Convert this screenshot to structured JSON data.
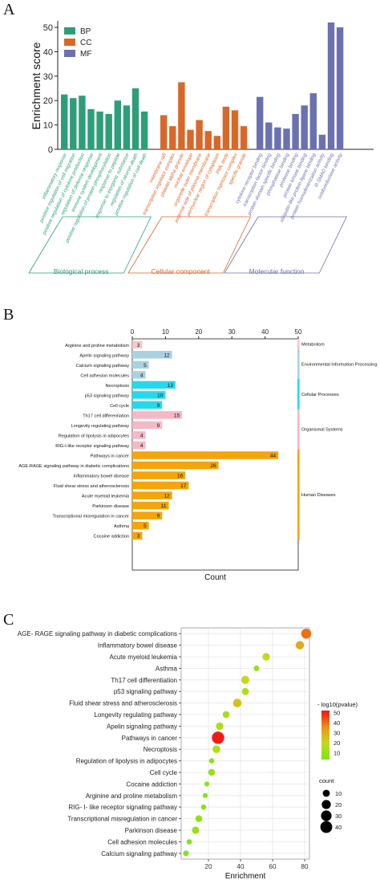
{
  "panels": {
    "A": {
      "letter": "A",
      "chart_data": {
        "type": "bar",
        "ylabel": "Enrichment score",
        "ylim": [
          0,
          52
        ],
        "yticks": [
          0,
          10,
          20,
          30,
          40,
          50
        ],
        "legend": [
          {
            "name": "BP",
            "color": "#2e9e78"
          },
          {
            "name": "CC",
            "color": "#d9672a"
          },
          {
            "name": "MF",
            "color": "#6b70b0"
          }
        ],
        "legend_position": "top-left",
        "groups": [
          {
            "name": "Biological process",
            "color": "#2e9e78",
            "categories": [
              "inflammatory response",
              "positive regulation of cell migration",
              "positive regulation of cytokine production",
              "regulation of defense response",
              "immune system development",
              "positive regulation of protein phosphorylation",
              "response to peptide",
              "response to inorganic substance",
              "regulation of neuron death",
              "positive regulation of cell death"
            ],
            "values": [
              22.5,
              21,
              22,
              16.5,
              15.5,
              14.5,
              20,
              18,
              25,
              15.5
            ]
          },
          {
            "name": "Cellular component",
            "color": "#d9672a",
            "categories": [
              "membrane raft",
              "transcription regulator complex",
              "platelet alpha granule",
              "nuclear envelope",
              "organelle outer membrane",
              "external side of plasma membrane",
              "perinuclear region of cytoplasm",
              "PML body",
              "transcription repressor complex",
              "specific granule"
            ],
            "values": [
              14,
              9.5,
              27.5,
              8,
              12,
              7.5,
              5.5,
              17.5,
              16,
              9.5
            ]
          },
          {
            "name": "Molecular function",
            "color": "#6b70b0",
            "categories": [
              "cytokine receptor binding",
              "transcription factor binding",
              "protein domain specific binding",
              "phosphatase binding",
              "protease binding",
              "protein kinase binding",
              "ubiquitin-like protein ligase binding",
              "protein homodimerization activity",
              "R-SMAD binding",
              "oxidoreductase activity"
            ],
            "values": [
              21.5,
              11,
              9,
              8.5,
              14.5,
              18,
              23,
              6,
              52,
              50
            ]
          }
        ]
      }
    },
    "B": {
      "letter": "B",
      "chart_data": {
        "type": "bar",
        "orientation": "horizontal",
        "xlabel": "Count",
        "xlim": [
          0,
          50
        ],
        "xticks": [
          0,
          10,
          20,
          30,
          40,
          50
        ],
        "groups": [
          {
            "name": "Metabolism",
            "color": "#f7c8c8",
            "categories": [
              "Arginine and proline metabolism"
            ],
            "values": [
              3
            ]
          },
          {
            "name": "Environmental Information Processing",
            "color": "#a9d2e0",
            "categories": [
              "Apelin signaling pathway",
              "Calcium signaling pathway",
              "Cell adhesion molecules"
            ],
            "values": [
              12,
              5,
              4
            ]
          },
          {
            "name": "Cellular Processes",
            "color": "#25d9ec",
            "categories": [
              "Necroptosis",
              "p53 signaling pathway",
              "Cell cycle"
            ],
            "values": [
              13,
              10,
              9
            ]
          },
          {
            "name": "Organismal Systems",
            "color": "#f4b8c6",
            "categories": [
              "Th17 cell differentiation",
              "Longevity regulating pathway",
              "Regulation of lipolysis in adipocytes",
              "RIG-I-like receptor signaling pathway"
            ],
            "values": [
              15,
              9,
              4,
              4
            ]
          },
          {
            "name": "Human Diseases",
            "color": "#f5a40a",
            "categories": [
              "Pathways in cancer",
              "AGE-RAGE signaling pathway in diabetic complications",
              "Inflammatory bowel disease",
              "Fluid shear stress and atherosclerosis",
              "Acute myeloid leukemia",
              "Parkinson disease",
              "Transcriptional misregulation in cancer",
              "Asthma",
              "Cocaine addiction"
            ],
            "values": [
              44,
              26,
              16,
              17,
              12,
              11,
              9,
              5,
              3
            ]
          }
        ]
      }
    },
    "C": {
      "letter": "C",
      "chart_data": {
        "type": "scatter",
        "xlabel": "Enrichment",
        "xlim": [
          3,
          83
        ],
        "xticks": [
          20,
          40,
          60,
          80
        ],
        "grid": true,
        "color_legend_title": "- log10(pvalue)",
        "color_ticks": [
          10,
          20,
          30,
          40,
          50
        ],
        "color_range": [
          3,
          52
        ],
        "size_legend_title": "count",
        "size_ticks": [
          10,
          20,
          30,
          40
        ],
        "points": [
          {
            "label": "AGE- RAGE signaling pathway in diabetic complications",
            "x": 81,
            "count": 26,
            "p": 40
          },
          {
            "label": "Inflammatory bowel disease",
            "x": 77,
            "count": 16,
            "p": 30
          },
          {
            "label": "Acute myeloid leukemia",
            "x": 56,
            "count": 12,
            "p": 20
          },
          {
            "label": "Asthma",
            "x": 50,
            "count": 5,
            "p": 10
          },
          {
            "label": "Th17 cell differentiation",
            "x": 43,
            "count": 15,
            "p": 20
          },
          {
            "label": "p53 signaling pathway",
            "x": 43,
            "count": 10,
            "p": 15
          },
          {
            "label": "Fluid shear stress and atherosclerosis",
            "x": 38,
            "count": 17,
            "p": 25
          },
          {
            "label": "Longevity regulating pathway",
            "x": 31,
            "count": 9,
            "p": 13
          },
          {
            "label": "Apelin signaling pathway",
            "x": 27,
            "count": 12,
            "p": 15
          },
          {
            "label": "Pathways in cancer",
            "x": 26,
            "count": 44,
            "p": 51
          },
          {
            "label": "Necroptosis",
            "x": 25,
            "count": 13,
            "p": 15
          },
          {
            "label": "Regulation of lipolysis in adipocytes",
            "x": 22,
            "count": 4,
            "p": 7
          },
          {
            "label": "Cell cycle",
            "x": 22,
            "count": 9,
            "p": 10
          },
          {
            "label": "Cocaine addiction",
            "x": 19,
            "count": 3,
            "p": 5
          },
          {
            "label": "Arginine and proline metabolism",
            "x": 18,
            "count": 3,
            "p": 5
          },
          {
            "label": "RIG- I- like receptor signaling pathway",
            "x": 17,
            "count": 4,
            "p": 5
          },
          {
            "label": "Transcriptional misregulation in cancer",
            "x": 14,
            "count": 9,
            "p": 8
          },
          {
            "label": "Parkinson disease",
            "x": 12,
            "count": 11,
            "p": 9
          },
          {
            "label": "Cell adhesion molecules",
            "x": 8,
            "count": 4,
            "p": 4
          },
          {
            "label": "Calcium signaling pathway",
            "x": 6,
            "count": 5,
            "p": 4
          }
        ]
      }
    }
  }
}
